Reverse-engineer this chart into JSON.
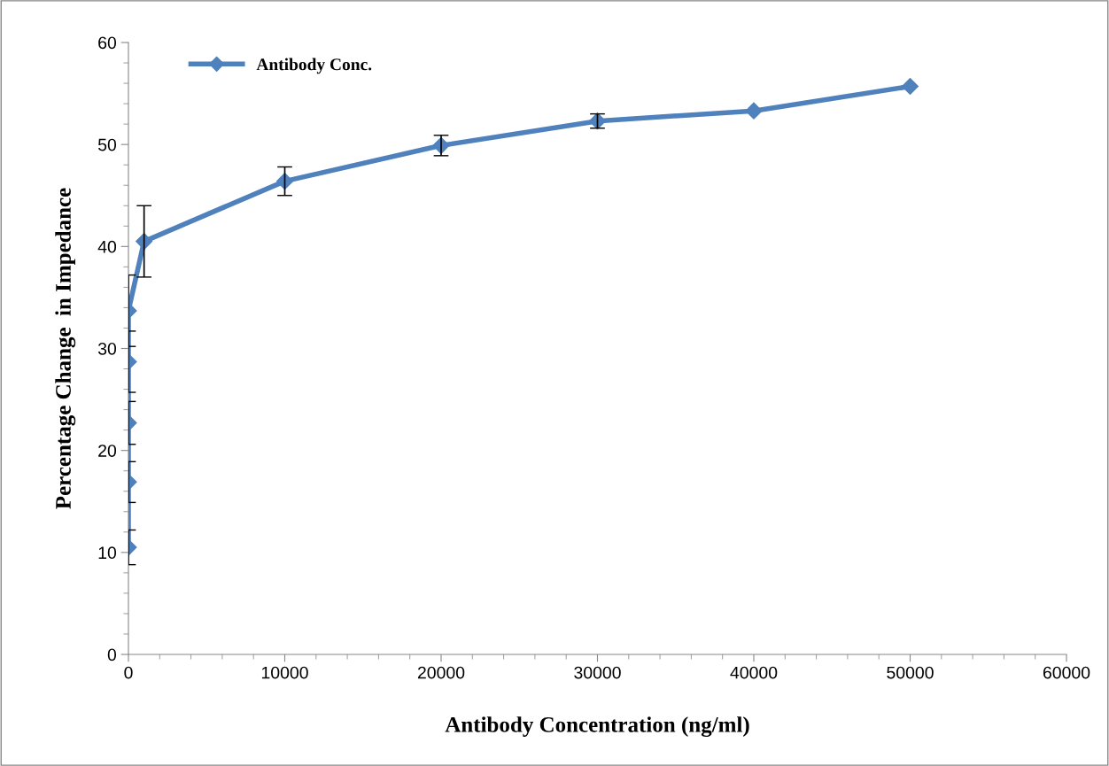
{
  "chart_data": {
    "type": "line",
    "xlabel": "Antibody Concentration (ng/ml)",
    "ylabel": "Percentage Change  in Impedance",
    "x": [
      0,
      0,
      0,
      0,
      0,
      1000,
      10000,
      20000,
      30000,
      40000,
      50000
    ],
    "series": [
      {
        "name": "Antibody Conc.",
        "color": "#4f81bd",
        "values": [
          10.5,
          16.9,
          22.7,
          28.7,
          33.7,
          40.5,
          46.4,
          49.9,
          52.3,
          53.3,
          55.7
        ],
        "errors": [
          1.7,
          2.0,
          2.1,
          3.0,
          3.5,
          3.5,
          1.4,
          1.0,
          0.7,
          null,
          null
        ]
      }
    ],
    "xlim": [
      0,
      60000
    ],
    "xticks": [
      0,
      10000,
      20000,
      30000,
      40000,
      50000,
      60000
    ],
    "ylim": [
      0,
      60
    ],
    "yticks": [
      0,
      10,
      20,
      30,
      40,
      50,
      60
    ],
    "marker": "diamond",
    "line_style": "solid",
    "grid": false,
    "legend": "top left"
  }
}
